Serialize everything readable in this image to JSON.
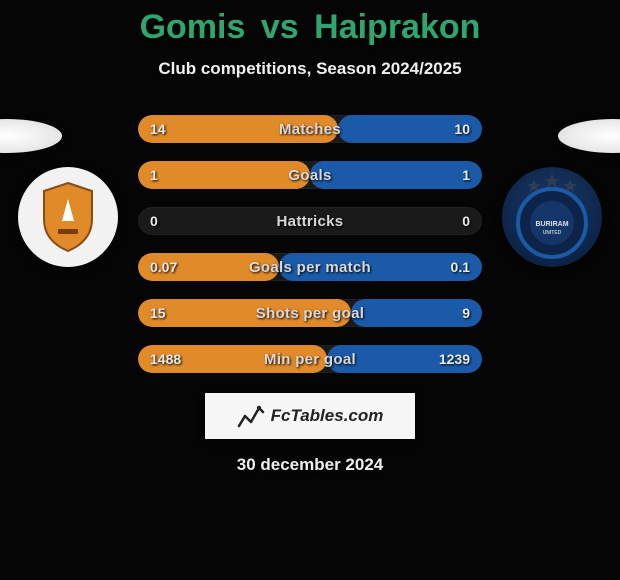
{
  "header": {
    "title_left": "Gomis",
    "title_vs": "vs",
    "title_right": "Haiprakon",
    "title_color": "#2fa66f",
    "subtitle": "Club competitions, Season 2024/2025"
  },
  "players": {
    "left_badge": {
      "bg": "#f2f2f2",
      "shield_fill": "#e08a2a",
      "shield_border": "#8a4a12"
    },
    "right_badge": {
      "bg_gradient_inner": "#1a3a6a",
      "bg_gradient_outer": "#081830",
      "stars_color": "#2c3e50",
      "ring_color": "#1a5aa8",
      "center_text": "BURIRAM"
    }
  },
  "stats": {
    "left_color": "#e08a2a",
    "right_color": "#1a5aa8",
    "track_color": "#1a1a1a",
    "rows": [
      {
        "label": "Matches",
        "left": "14",
        "right": "10",
        "lpct": 58,
        "rpct": 42
      },
      {
        "label": "Goals",
        "left": "1",
        "right": "1",
        "lpct": 50,
        "rpct": 50
      },
      {
        "label": "Hattricks",
        "left": "0",
        "right": "0",
        "lpct": 0,
        "rpct": 0
      },
      {
        "label": "Goals per match",
        "left": "0.07",
        "right": "0.1",
        "lpct": 41,
        "rpct": 59
      },
      {
        "label": "Shots per goal",
        "left": "15",
        "right": "9",
        "lpct": 62,
        "rpct": 38
      },
      {
        "label": "Min per goal",
        "left": "1488",
        "right": "1239",
        "lpct": 55,
        "rpct": 45
      }
    ]
  },
  "footer": {
    "watermark_text": "FcTables.com",
    "date": "30 december 2024"
  }
}
